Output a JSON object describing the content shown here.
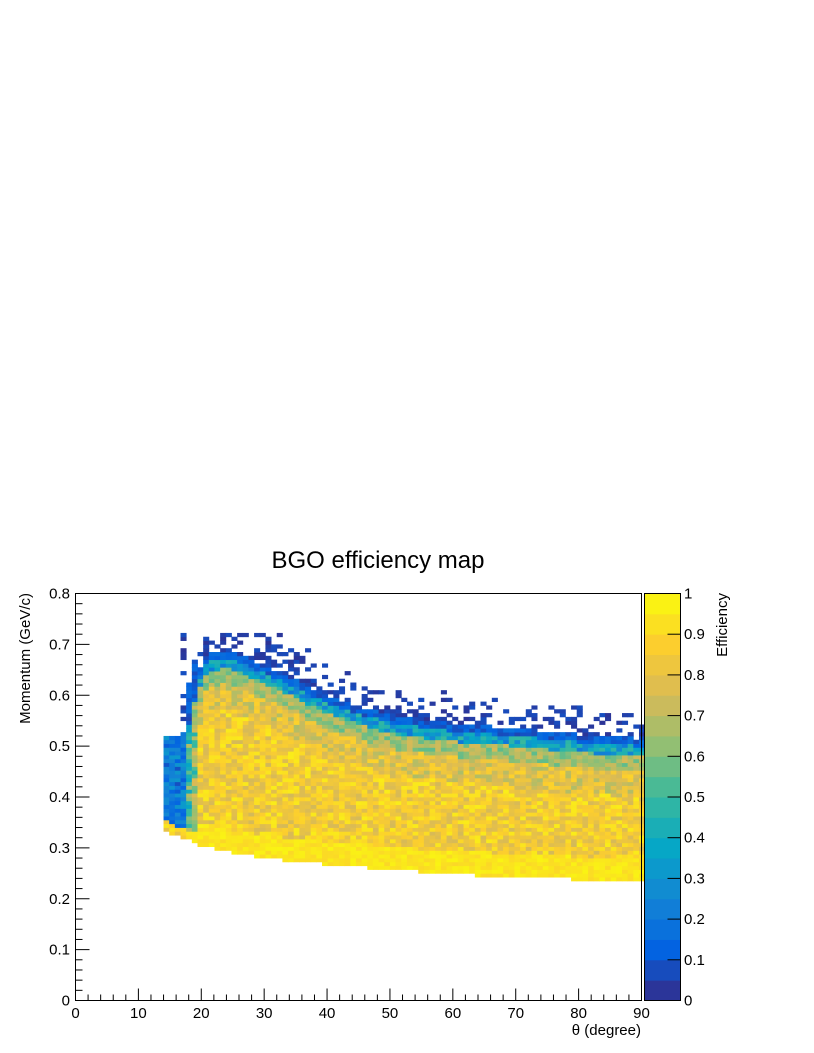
{
  "chart_data": {
    "type": "heatmap",
    "title": "BGO efficiency map",
    "xlabel": "θ (degree)",
    "ylabel": "Momentum (GeV/c)",
    "colorbar_label": "Efficiency",
    "xlim": [
      0,
      90
    ],
    "ylim": [
      0,
      0.8
    ],
    "zlim": [
      0,
      1
    ],
    "x_ticks": [
      0,
      10,
      20,
      30,
      40,
      50,
      60,
      70,
      80,
      90
    ],
    "y_ticks": [
      0,
      0.1,
      0.2,
      0.3,
      0.4,
      0.5,
      0.6,
      0.7,
      0.8
    ],
    "z_ticks": [
      0,
      0.1,
      0.2,
      0.3,
      0.4,
      0.5,
      0.6,
      0.7,
      0.8,
      0.9,
      1
    ],
    "x_tick_labels": [
      "0",
      "10",
      "20",
      "30",
      "40",
      "50",
      "60",
      "70",
      "80",
      "90"
    ],
    "y_tick_labels": [
      "0",
      "0.1",
      "0.2",
      "0.3",
      "0.4",
      "0.5",
      "0.6",
      "0.7",
      "0.8"
    ],
    "z_tick_labels": [
      "0",
      "0.1",
      "0.2",
      "0.3",
      "0.4",
      "0.5",
      "0.6",
      "0.7",
      "0.8",
      "0.9",
      "1"
    ],
    "grid": false,
    "palette": [
      "#352a87",
      "#0363e1",
      "#1485d4",
      "#06a7c6",
      "#38b99e",
      "#92bf73",
      "#d9ba56",
      "#fcce2e",
      "#f9fb0e"
    ],
    "region": {
      "theta_min": 14,
      "theta_max": 90,
      "bin_theta": 0.9,
      "bin_momentum": 0.0075,
      "lower_edge": [
        [
          14,
          0.335
        ],
        [
          18,
          0.315
        ],
        [
          20,
          0.305
        ],
        [
          25,
          0.29
        ],
        [
          30,
          0.28
        ],
        [
          40,
          0.268
        ],
        [
          50,
          0.258
        ],
        [
          60,
          0.248
        ],
        [
          70,
          0.243
        ],
        [
          80,
          0.238
        ],
        [
          90,
          0.233
        ]
      ],
      "band_edge": [
        [
          17,
          0.52
        ],
        [
          19,
          0.62
        ],
        [
          21,
          0.665
        ],
        [
          24,
          0.675
        ],
        [
          27,
          0.66
        ],
        [
          30,
          0.645
        ],
        [
          40,
          0.585
        ],
        [
          50,
          0.545
        ],
        [
          60,
          0.53
        ],
        [
          70,
          0.52
        ],
        [
          80,
          0.508
        ],
        [
          90,
          0.5
        ]
      ],
      "interior_efficiency": 0.85,
      "low_p_efficiency": 0.98,
      "edge_efficiency": 0.1,
      "sparse_upper_limit": 0.725
    }
  }
}
